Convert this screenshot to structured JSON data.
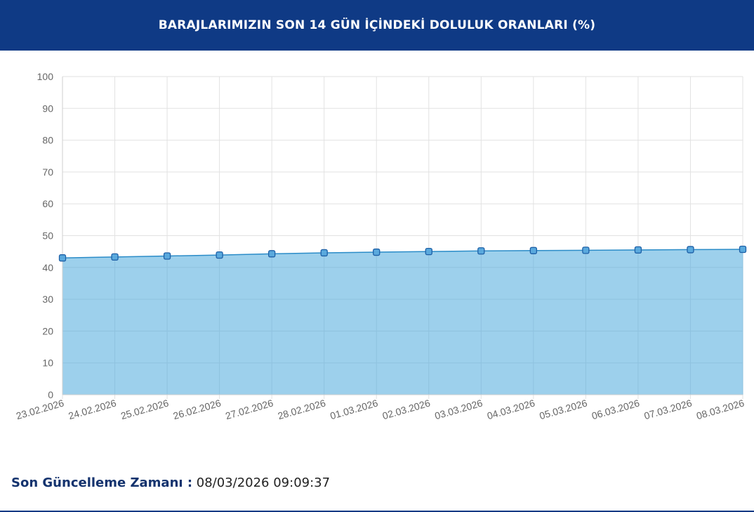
{
  "header": {
    "title": "BARAJLARIMIZIN SON 14 GÜN İÇİNDEKİ DOLULUK ORANLARI (%)",
    "background": "#0f3a85"
  },
  "chart_data": {
    "type": "area",
    "title": "BARAJLARIMIZIN SON 14 GÜN İÇİNDEKİ DOLULUK ORANLARI (%)",
    "xlabel": "",
    "ylabel": "",
    "categories": [
      "23.02.2026",
      "24.02.2026",
      "25.02.2026",
      "26.02.2026",
      "27.02.2026",
      "28.02.2026",
      "01.03.2026",
      "02.03.2026",
      "03.03.2026",
      "04.03.2026",
      "05.03.2026",
      "06.03.2026",
      "07.03.2026",
      "08.03.2026"
    ],
    "values": [
      43.0,
      43.3,
      43.6,
      43.9,
      44.3,
      44.6,
      44.8,
      45.0,
      45.2,
      45.3,
      45.4,
      45.5,
      45.6,
      45.7
    ],
    "ylim": [
      0,
      100
    ],
    "yticks": [
      0,
      10,
      20,
      30,
      40,
      50,
      60,
      70,
      80,
      90,
      100
    ],
    "grid": true,
    "colors": {
      "fill": "#9dd0ec",
      "line": "#2b8cc8",
      "marker": "#1d5fa6",
      "grid": "#e2e2e2"
    }
  },
  "footer": {
    "label": "Son Güncelleme Zamanı :",
    "value": "08/03/2026 09:09:37"
  }
}
